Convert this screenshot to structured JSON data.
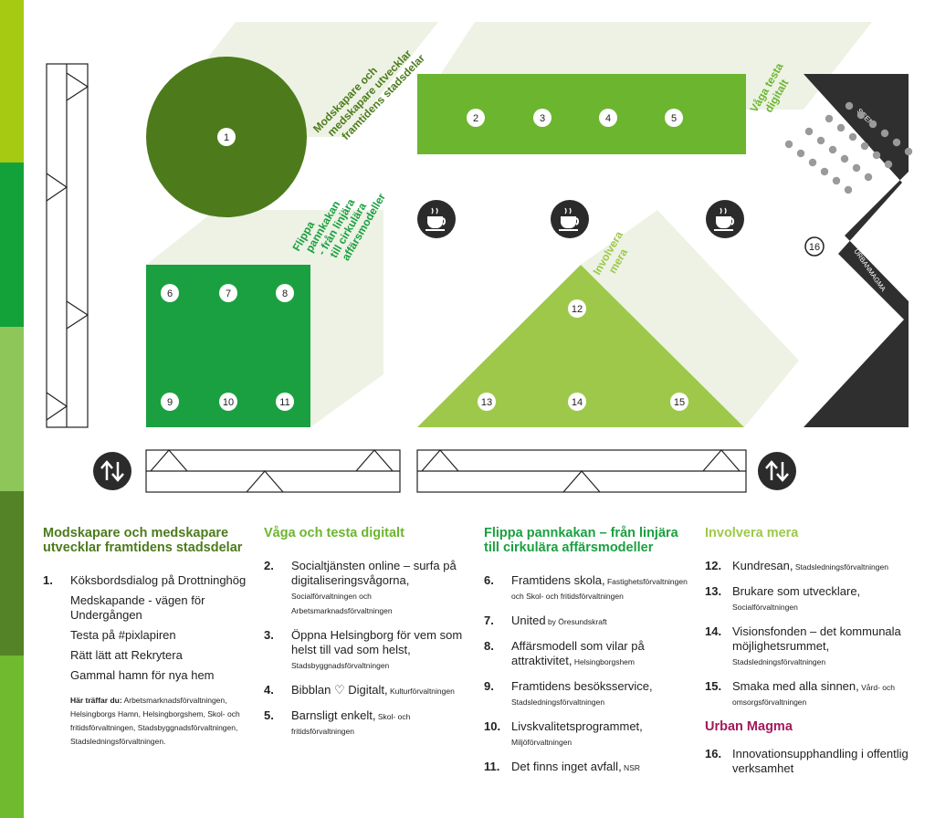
{
  "colors": {
    "dark_green": "#4d7b1c",
    "green": "#1aa040",
    "mid_green": "#6cb52f",
    "light_green": "#9ec84a",
    "pale": "#edf2e4",
    "dark": "#2f2f2f",
    "magenta": "#a3195b",
    "band": [
      "#a6c912",
      "#13a23a",
      "#8ec65a",
      "#548226",
      "#6fba2e"
    ]
  },
  "map": {
    "zone_labels": {
      "z1": [
        "Modskapare och",
        "medskapare utvecklar",
        "framtidens stadsdelar"
      ],
      "z2": [
        "Våga testa",
        "digitalt"
      ],
      "z3": [
        "Flippa",
        "pannkakan",
        "- från linjära",
        "till cirkulära",
        "affärsmodeller"
      ],
      "z4": [
        "Involvera",
        "mera"
      ]
    },
    "scen_label": "SCEN",
    "urbanmagma_label": "URBANMAGMA",
    "stations": [
      "1",
      "2",
      "3",
      "4",
      "5",
      "6",
      "7",
      "8",
      "9",
      "10",
      "11",
      "12",
      "13",
      "14",
      "15",
      "16"
    ],
    "icons": [
      "coffee-cup-icon",
      "coffee-cup-icon",
      "coffee-cup-icon",
      "up-down-arrows-icon",
      "up-down-arrows-icon"
    ]
  },
  "legend": {
    "col1": {
      "heading": "Modskapare och medskapare utvecklar framtidens stadsdelar",
      "num": "1.",
      "first": "Köksbordsdialog på Drottninghög",
      "subs": [
        "Medskapande - vägen för Undergången",
        "Testa på #pixlapiren",
        "Rätt lätt att Rekrytera",
        "Gammal hamn för nya hem"
      ],
      "note_bold": "Här träffar du:",
      "note": " Arbetsmarknadsförvaltningen, Helsingborgs Hamn, Helsingborgshem,  Skol- och fritidsförvaltningen, Stadsbyggnadsförvaltningen, Stadsledningsförvaltningen."
    },
    "col2": {
      "heading": "Våga och testa digitalt",
      "items": [
        {
          "num": "2.",
          "title": "Socialtjänsten online – surfa på digitaliseringsvågorna,",
          "org": "Socialförvaltningen och Arbetsmarknadsförvaltningen"
        },
        {
          "num": "3.",
          "title": "Öppna Helsingborg för vem som helst till vad som helst,",
          "org": "Stadsbyggnadsförvaltningen"
        },
        {
          "num": "4.",
          "title": "Bibblan ♡ Digitalt,",
          "org": "Kulturförvaltningen"
        },
        {
          "num": "5.",
          "title": "Barnsligt enkelt,",
          "org": "Skol- och fritidsförvaltningen"
        }
      ]
    },
    "col3": {
      "heading": "Flippa pannkakan – från linjära till cirkulära affärsmodeller",
      "items": [
        {
          "num": "6.",
          "title": "Framtidens skola,",
          "org": "Fastighetsförvaltningen och Skol- och fritidsförvaltningen"
        },
        {
          "num": "7.",
          "title": "United",
          "org": "by Öresundskraft"
        },
        {
          "num": "8.",
          "title": "Affärsmodell som vilar på attraktivitet,",
          "org": "Helsingborgshem"
        },
        {
          "num": "9.",
          "title": "Framtidens besöksservice,",
          "org": "Stadsledningsförvaltningen"
        },
        {
          "num": "10.",
          "title": "Livskvalitetsprogrammet,",
          "org": "Miljöförvaltningen"
        },
        {
          "num": "11.",
          "title": "Det finns inget avfall,",
          "org": "NSR"
        }
      ]
    },
    "col4": {
      "heading": "Involvera mera",
      "items": [
        {
          "num": "12.",
          "title": "Kundresan,",
          "org": "Stadsledningsförvaltningen"
        },
        {
          "num": "13.",
          "title": "Brukare som utvecklare,",
          "org": "Socialförvaltningen"
        },
        {
          "num": "14.",
          "title": "Visionsfonden – det kommunala möjlighetsrummet,",
          "org": "Stadsledningsförvaltningen"
        },
        {
          "num": "15.",
          "title": "Smaka med alla sinnen,",
          "org": "Vård- och omsorgsförvaltningen"
        }
      ],
      "heading2": "Urban Magma",
      "items2": [
        {
          "num": "16.",
          "title": "Innovationsupphandling i offentlig verksamhet",
          "org": ""
        }
      ]
    }
  }
}
